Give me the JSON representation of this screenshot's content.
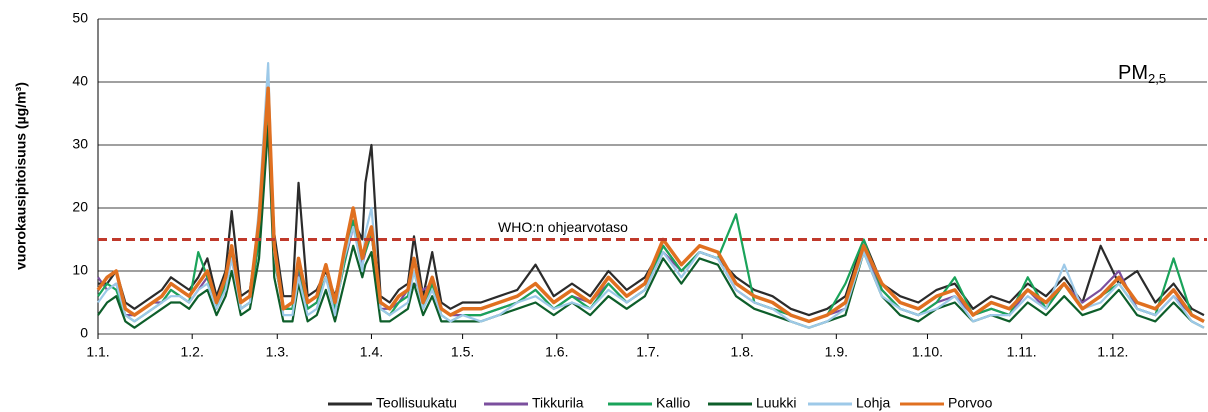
{
  "chart_data": {
    "type": "line",
    "ylabel": "vuorokausipitoisuus (µg/m³)",
    "label_main": "PM",
    "label_sub": "2,5",
    "reference": {
      "value": 15,
      "label": "WHO:n ohjearvotaso",
      "color": "#c0392b"
    },
    "xlim": [
      0,
      365
    ],
    "xticks": [
      {
        "value": 0,
        "label": "1.1."
      },
      {
        "value": 31,
        "label": "1.2."
      },
      {
        "value": 59,
        "label": "1.3."
      },
      {
        "value": 90,
        "label": "1.4."
      },
      {
        "value": 120,
        "label": "1.5."
      },
      {
        "value": 151,
        "label": "1.6."
      },
      {
        "value": 181,
        "label": "1.7."
      },
      {
        "value": 212,
        "label": "1.8."
      },
      {
        "value": 243,
        "label": "1.9."
      },
      {
        "value": 273,
        "label": "1.10."
      },
      {
        "value": 304,
        "label": "1.11."
      },
      {
        "value": 334,
        "label": "1.12."
      }
    ],
    "ylim": [
      0,
      50
    ],
    "yticks": [
      0,
      10,
      20,
      30,
      40,
      50
    ],
    "grid": true,
    "x": [
      0,
      3,
      6,
      9,
      12,
      15,
      18,
      21,
      24,
      27,
      30,
      33,
      36,
      39,
      42,
      44,
      47,
      50,
      53,
      56,
      58,
      61,
      64,
      66,
      69,
      72,
      75,
      78,
      81,
      84,
      87,
      88,
      90,
      93,
      96,
      99,
      102,
      104,
      107,
      110,
      113,
      116,
      120,
      126,
      132,
      138,
      144,
      150,
      156,
      162,
      168,
      174,
      180,
      186,
      192,
      198,
      204,
      210,
      216,
      222,
      228,
      234,
      240,
      246,
      252,
      258,
      264,
      270,
      276,
      282,
      288,
      294,
      300,
      306,
      312,
      318,
      324,
      330,
      336,
      342,
      348,
      354,
      360,
      364
    ],
    "series": [
      {
        "name": "Teollisuukatu",
        "color": "#2b2b2b",
        "values": [
          8,
          8,
          10,
          5,
          4,
          5,
          6,
          7,
          9,
          8,
          7,
          9,
          12,
          6,
          10,
          19.5,
          6,
          7,
          17,
          37,
          16,
          6,
          6,
          24,
          6,
          7,
          10,
          6,
          12,
          18,
          15,
          24,
          30,
          6,
          5,
          7,
          8,
          15.5,
          6,
          13,
          5,
          4,
          5,
          5,
          6,
          7,
          11,
          6,
          8,
          6,
          10,
          7,
          9,
          14,
          10,
          13,
          12,
          9,
          7,
          6,
          4,
          3,
          4,
          6,
          15,
          8,
          6,
          5,
          7,
          8,
          4,
          6,
          5,
          8,
          6,
          9,
          5,
          14,
          8,
          10,
          5,
          8,
          4,
          3
        ]
      },
      {
        "name": "Tikkurila",
        "color": "#7b4f9e",
        "values": [
          9,
          7,
          8,
          3,
          3,
          4,
          5,
          5,
          7,
          6,
          5,
          7,
          9,
          4,
          8,
          12,
          4,
          5,
          15,
          35,
          12,
          4,
          4,
          10,
          4,
          5,
          9,
          4,
          11,
          17,
          11,
          13,
          16,
          4,
          4,
          5,
          7,
          8,
          7,
          8,
          4,
          3,
          3,
          3,
          4,
          5,
          7,
          4,
          6,
          5,
          8,
          5,
          7,
          13,
          10,
          13,
          12,
          7,
          5,
          4,
          3,
          2,
          3,
          4,
          14,
          7,
          4,
          3,
          5,
          6,
          3,
          4,
          3,
          7,
          4,
          8,
          5,
          7,
          10,
          4,
          3,
          6,
          3,
          2
        ]
      },
      {
        "name": "Kallio",
        "color": "#1aa35a",
        "values": [
          6,
          8,
          7,
          3,
          2,
          3,
          4,
          5,
          7,
          6,
          5,
          13,
          9,
          4,
          8,
          13,
          4,
          5,
          15,
          36,
          12,
          4,
          4,
          11,
          4,
          5,
          9,
          4,
          11,
          18,
          12,
          13,
          16,
          4,
          3,
          5,
          6,
          10,
          4,
          8,
          3,
          2,
          3,
          3,
          4,
          5,
          7,
          4,
          6,
          4,
          8,
          5,
          7,
          14,
          10,
          13,
          12,
          19,
          5,
          4,
          3,
          2,
          3,
          8,
          15,
          7,
          4,
          3,
          5,
          9,
          3,
          4,
          3,
          9,
          4,
          8,
          4,
          6,
          8,
          4,
          3,
          12,
          3,
          2
        ]
      },
      {
        "name": "Luukki",
        "color": "#0d5e2a",
        "values": [
          3,
          5,
          6,
          2,
          1,
          2,
          3,
          4,
          5,
          5,
          4,
          6,
          7,
          3,
          6,
          10,
          3,
          4,
          12,
          33,
          9,
          2,
          2,
          8,
          2,
          3,
          7,
          2,
          8,
          14,
          9,
          11,
          13,
          2,
          2,
          3,
          4,
          8,
          3,
          6,
          2,
          2,
          2,
          2,
          3,
          4,
          5,
          3,
          5,
          3,
          6,
          4,
          6,
          12,
          8,
          12,
          11,
          6,
          4,
          3,
          2,
          1,
          2,
          3,
          13,
          6,
          3,
          2,
          4,
          5,
          2,
          3,
          2,
          5,
          3,
          6,
          3,
          4,
          7,
          3,
          2,
          5,
          2,
          1
        ]
      },
      {
        "name": "Lohja",
        "color": "#9dc9e8",
        "values": [
          5,
          7,
          8,
          3,
          2,
          3,
          4,
          5,
          6,
          6,
          5,
          7,
          8,
          4,
          7,
          12,
          4,
          5,
          20,
          43,
          13,
          3,
          3,
          9,
          3,
          4,
          9,
          3,
          12,
          17,
          10,
          16,
          20,
          4,
          3,
          4,
          5,
          10,
          4,
          7,
          3,
          2,
          3,
          2,
          3,
          5,
          6,
          4,
          5,
          4,
          7,
          5,
          7,
          13,
          9,
          13,
          12,
          7,
          5,
          4,
          2,
          1,
          2,
          4,
          13,
          6,
          4,
          3,
          4,
          6,
          2,
          3,
          3,
          6,
          4,
          11,
          4,
          5,
          8,
          4,
          3,
          6,
          2,
          1
        ]
      },
      {
        "name": "Porvoo",
        "color": "#e07020",
        "values": [
          7,
          9,
          10,
          4,
          3,
          4,
          5,
          6,
          8,
          7,
          6,
          8,
          10,
          5,
          9,
          14,
          5,
          6,
          18,
          39,
          14,
          4,
          5,
          12,
          5,
          6,
          11,
          5,
          13,
          20,
          12,
          14,
          17,
          5,
          4,
          6,
          7,
          12,
          5,
          9,
          4,
          3,
          4,
          4,
          5,
          6,
          8,
          5,
          7,
          5,
          9,
          6,
          8,
          15,
          11,
          14,
          13,
          8,
          6,
          5,
          3,
          2,
          3,
          5,
          14,
          8,
          5,
          4,
          6,
          7,
          3,
          5,
          4,
          7,
          5,
          8,
          4,
          6,
          9,
          5,
          4,
          7,
          3,
          2
        ]
      }
    ]
  }
}
